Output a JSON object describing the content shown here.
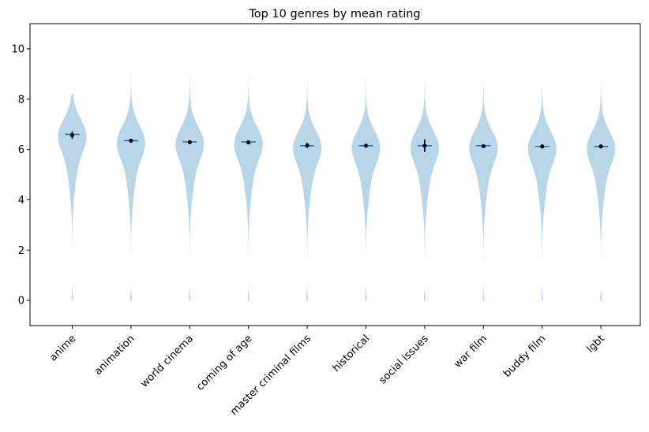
{
  "chart_data": {
    "type": "violin",
    "title": "Top 10 genres by mean rating",
    "xlabel": "",
    "ylabel": "",
    "ylim": [
      -1,
      11
    ],
    "yticks": [
      0,
      2,
      4,
      6,
      8,
      10
    ],
    "grid": false,
    "colors": {
      "violin_fill": "#b9d5e8",
      "median_line": "#1f77b4",
      "mean_marker": "#000000",
      "error_bar": "#000000"
    },
    "categories": [
      "anime",
      "animation",
      "world cinema",
      "coming of age",
      "master criminal films",
      "historical",
      "social issues",
      "war film",
      "buddy film",
      "lgbt"
    ],
    "means": [
      6.57,
      6.35,
      6.29,
      6.28,
      6.16,
      6.15,
      6.15,
      6.13,
      6.12,
      6.12
    ],
    "medians": [
      6.6,
      6.35,
      6.3,
      6.3,
      6.15,
      6.15,
      6.15,
      6.15,
      6.12,
      6.12
    ],
    "error": [
      0.15,
      0.03,
      0.03,
      0.03,
      0.1,
      0.03,
      0.25,
      0.03,
      0.03,
      0.03
    ],
    "ranges": [
      [
        0,
        8.2
      ],
      [
        0,
        10.0
      ],
      [
        0,
        10.0
      ],
      [
        0,
        10.0
      ],
      [
        0,
        10.0
      ],
      [
        0,
        10.0
      ],
      [
        0,
        9.0
      ],
      [
        0,
        10.0
      ],
      [
        0,
        8.5
      ],
      [
        0,
        10.0
      ]
    ]
  }
}
